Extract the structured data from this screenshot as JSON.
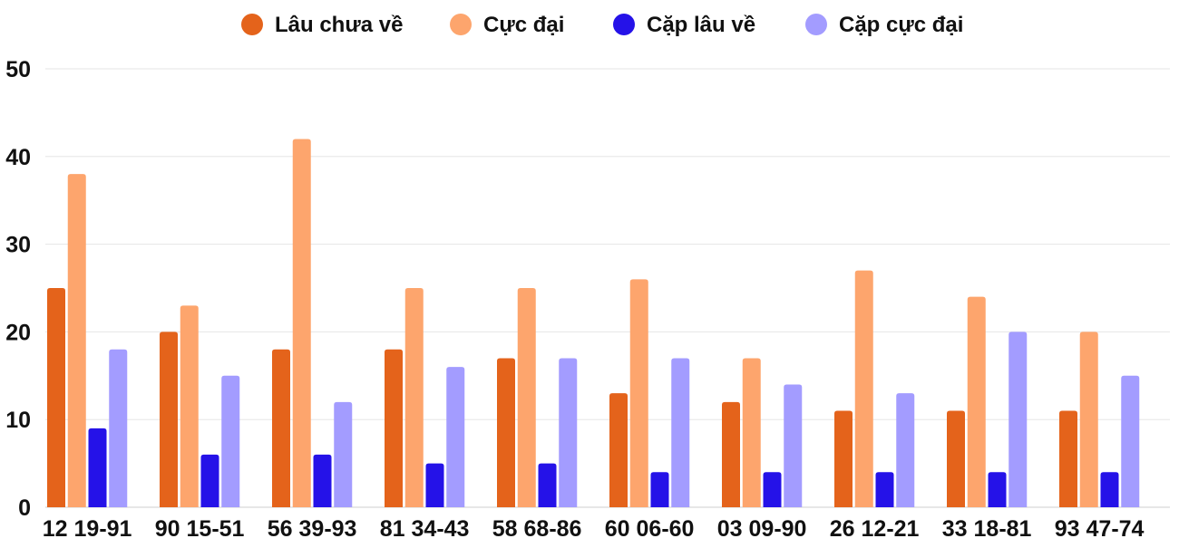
{
  "chart_data": {
    "type": "bar",
    "title": "",
    "xlabel": "",
    "ylabel": "",
    "ylim": [
      0,
      50
    ],
    "yticks": [
      0,
      10,
      20,
      30,
      40,
      50
    ],
    "grid": true,
    "legend_position": "top-center",
    "categories": [
      "12 19-91",
      "90 15-51",
      "56 39-93",
      "81 34-43",
      "58 68-86",
      "60 06-60",
      "03 09-90",
      "26 12-21",
      "33 18-81",
      "93 47-74"
    ],
    "series": [
      {
        "name": "Lâu chưa về",
        "color": "#e4631b",
        "values": [
          25,
          20,
          18,
          18,
          17,
          13,
          12,
          11,
          11,
          11
        ]
      },
      {
        "name": "Cực đại",
        "color": "#fda56d",
        "values": [
          38,
          23,
          42,
          25,
          25,
          26,
          17,
          27,
          24,
          20
        ]
      },
      {
        "name": "Cặp lâu về",
        "color": "#2512e8",
        "values": [
          9,
          6,
          6,
          5,
          5,
          4,
          4,
          4,
          4,
          4
        ]
      },
      {
        "name": "Cặp cực đại",
        "color": "#a39cff",
        "values": [
          18,
          15,
          12,
          16,
          17,
          17,
          14,
          13,
          20,
          15
        ]
      }
    ]
  }
}
